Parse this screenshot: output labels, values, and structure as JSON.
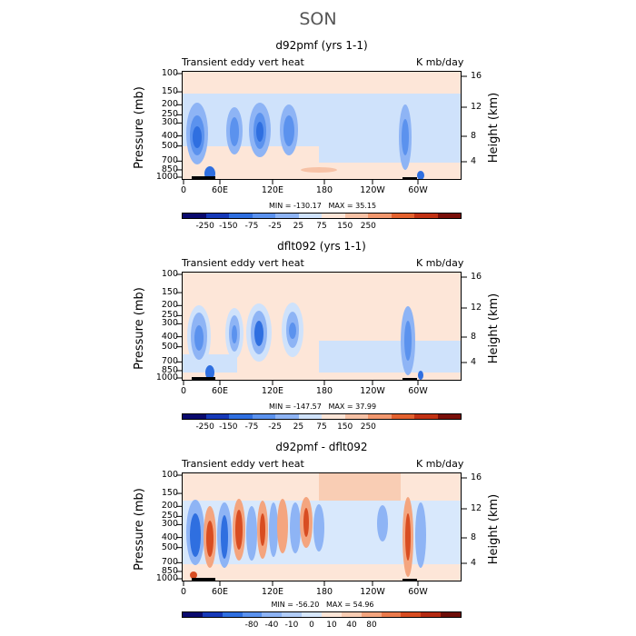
{
  "figure": {
    "title": "SON"
  },
  "chart_data": [
    {
      "type": "heatmap",
      "title": "d92pmf (yrs 1-1)",
      "left_string": "Transient eddy vert heat",
      "right_string": "K mb/day",
      "ylabel": "Pressure (mb)",
      "right_ylabel": "Height (km)",
      "pressure_ticks": [
        "100",
        "150",
        "200",
        "250",
        "300",
        "400",
        "500",
        "700",
        "850",
        "1000"
      ],
      "height_ticks": [
        "16",
        "12",
        "8",
        "4"
      ],
      "longitude_ticks": [
        "0",
        "60E",
        "120E",
        "180",
        "120W",
        "60W"
      ],
      "min_label": "MIN = -130.17",
      "max_label": "MAX = 35.15",
      "colorbar_labels": [
        "-250",
        "-150",
        "-75",
        "-25",
        "25",
        "75",
        "150",
        "250"
      ]
    },
    {
      "type": "heatmap",
      "title": "dflt092 (yrs 1-1)",
      "left_string": "Transient eddy vert heat",
      "right_string": "K mb/day",
      "ylabel": "Pressure (mb)",
      "right_ylabel": "Height (km)",
      "pressure_ticks": [
        "100",
        "150",
        "200",
        "250",
        "300",
        "400",
        "500",
        "700",
        "850",
        "1000"
      ],
      "height_ticks": [
        "16",
        "12",
        "8",
        "4"
      ],
      "longitude_ticks": [
        "0",
        "60E",
        "120E",
        "180",
        "120W",
        "60W"
      ],
      "min_label": "MIN = -147.57",
      "max_label": "MAX = 37.99",
      "colorbar_labels": [
        "-250",
        "-150",
        "-75",
        "-25",
        "25",
        "75",
        "150",
        "250"
      ]
    },
    {
      "type": "heatmap",
      "title": "d92pmf - dflt092",
      "left_string": "Transient eddy vert heat",
      "right_string": "K mb/day",
      "ylabel": "Pressure (mb)",
      "right_ylabel": "Height (km)",
      "pressure_ticks": [
        "100",
        "150",
        "200",
        "250",
        "300",
        "400",
        "500",
        "700",
        "850",
        "1000"
      ],
      "height_ticks": [
        "16",
        "12",
        "8",
        "4"
      ],
      "longitude_ticks": [
        "0",
        "60E",
        "120E",
        "180",
        "120W",
        "60W"
      ],
      "min_label": "MIN = -56.20",
      "max_label": "MAX = 54.96",
      "colorbar_labels": [
        "-80",
        "-40",
        "-10",
        "0",
        "10",
        "40",
        "80"
      ]
    }
  ],
  "colors": {
    "cbar12": [
      "#0a0a6e",
      "#1639b8",
      "#2f6fe0",
      "#5b92ee",
      "#8eb4f5",
      "#cfe2fb",
      "#fde6d8",
      "#f7c2a6",
      "#f2986f",
      "#e4622f",
      "#c23214",
      "#7a0f0a"
    ],
    "cbar14": [
      "#0a0a6e",
      "#1639b8",
      "#2f6fe0",
      "#5b92ee",
      "#8eb4f5",
      "#b2cdf8",
      "#d8e8fc",
      "#fde6d8",
      "#f9cdb4",
      "#f4a57f",
      "#eb7a4c",
      "#d84d22",
      "#b52a12",
      "#6e0d08"
    ]
  }
}
